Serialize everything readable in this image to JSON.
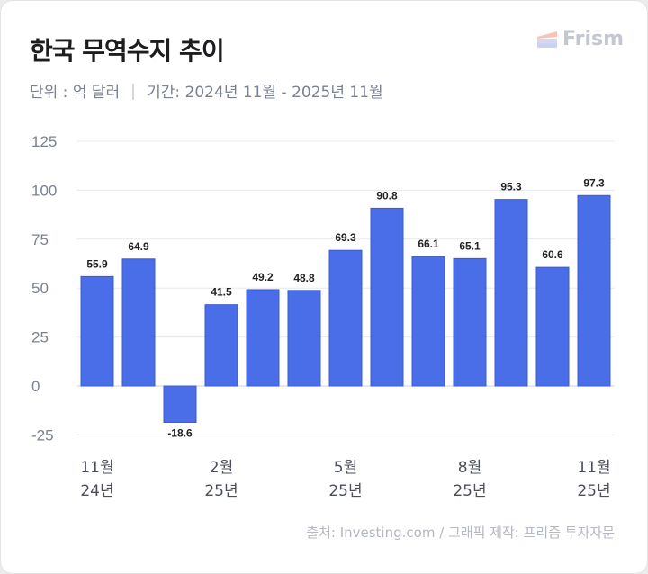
{
  "header": {
    "title": "한국 무역수지 추이",
    "unit": "단위 : 억 달러",
    "period": "기간: 2024년 11월 - 2025년 11월"
  },
  "logo": {
    "text": "Frism"
  },
  "footer": {
    "source": "출처: Investing.com / 그래픽 제작: 프리즘 투자자문"
  },
  "chart_data": {
    "type": "bar",
    "title": "한국 무역수지 추이",
    "ylabel": "억 달러",
    "categories": [
      "2024-11",
      "2024-12",
      "2025-01",
      "2025-02",
      "2025-03",
      "2025-04",
      "2025-05",
      "2025-06",
      "2025-07",
      "2025-08",
      "2025-09",
      "2025-10",
      "2025-11"
    ],
    "values": [
      55.9,
      64.9,
      -18.6,
      41.5,
      49.2,
      48.8,
      69.3,
      90.8,
      66.1,
      65.1,
      95.3,
      60.6,
      97.3
    ],
    "data_labels": [
      "55.9",
      "64.9",
      "-18.6",
      "41.5",
      "49.2",
      "48.8",
      "69.3",
      "90.8",
      "66.1",
      "65.1",
      "95.3",
      "60.6",
      "97.3"
    ],
    "ylim": [
      -25,
      125
    ],
    "yticks": [
      "125",
      "100",
      "75",
      "50",
      "25",
      "0",
      "-25"
    ],
    "ytick_values": [
      125,
      100,
      75,
      50,
      25,
      0,
      -25
    ],
    "xtick_labels": [
      {
        "index": 0,
        "month": "11월",
        "year": "24년"
      },
      {
        "index": 3,
        "month": "2월",
        "year": "25년"
      },
      {
        "index": 6,
        "month": "5월",
        "year": "25년"
      },
      {
        "index": 9,
        "month": "8월",
        "year": "25년"
      },
      {
        "index": 12,
        "month": "11월",
        "year": "25년"
      }
    ],
    "grid": true,
    "bar_color": "#4a6ee8"
  }
}
